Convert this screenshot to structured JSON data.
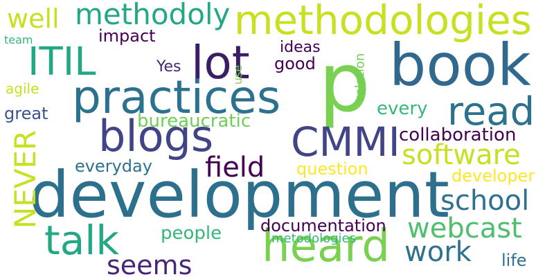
{
  "words": {
    "development": {
      "text": "development",
      "color": "#2d708e"
    },
    "methodologies": {
      "text": "methodologies",
      "color": "#c8e020"
    },
    "p": {
      "text": "p",
      "color": "#7ad151"
    },
    "book": {
      "text": "book",
      "color": "#31688e"
    },
    "practices": {
      "text": "practices",
      "color": "#2c728e"
    },
    "lot": {
      "text": "lot",
      "color": "#3b1f66"
    },
    "itil": {
      "text": "ITIL",
      "color": "#22a884"
    },
    "methodoly": {
      "text": "methodoly",
      "color": "#22a884"
    },
    "well": {
      "text": "well",
      "color": "#c8e020"
    },
    "read": {
      "text": "read",
      "color": "#2c728e"
    },
    "blogs": {
      "text": "blogs",
      "color": "#414487"
    },
    "cmmi": {
      "text": "CMMI",
      "color": "#414487"
    },
    "heard": {
      "text": "heard",
      "color": "#7ad151"
    },
    "talk": {
      "text": "talk",
      "color": "#22a884"
    },
    "never": {
      "text": "NEVER",
      "color": "#c8e020"
    },
    "software": {
      "text": "software",
      "color": "#c8e020"
    },
    "field": {
      "text": "field",
      "color": "#440154"
    },
    "school": {
      "text": "school",
      "color": "#2c728e"
    },
    "webcast": {
      "text": "webcast",
      "color": "#4fbf6f"
    },
    "work": {
      "text": "work",
      "color": "#2c728e"
    },
    "seems": {
      "text": "seems",
      "color": "#482677"
    },
    "impact": {
      "text": "impact",
      "color": "#440154"
    },
    "team": {
      "text": "team",
      "color": "#35b779"
    },
    "ideas": {
      "text": "ideas",
      "color": "#440154"
    },
    "yes": {
      "text": "Yes",
      "color": "#482677"
    },
    "good": {
      "text": "good",
      "color": "#440154"
    },
    "use": {
      "text": "use",
      "color": "#7ad151"
    },
    "relation": {
      "text": "relation",
      "color": "#6ece58"
    },
    "agile": {
      "text": "agile",
      "color": "#c8e020"
    },
    "every": {
      "text": "every",
      "color": "#35b779"
    },
    "great": {
      "text": "great",
      "color": "#3b528b"
    },
    "bureaucratic": {
      "text": "bureaucratic",
      "color": "#6ece58"
    },
    "collaboration": {
      "text": "collaboration",
      "color": "#440154"
    },
    "everyday": {
      "text": "everyday",
      "color": "#2c728e"
    },
    "question": {
      "text": "question",
      "color": "#fde725"
    },
    "developer": {
      "text": "developer",
      "color": "#fde725"
    },
    "people": {
      "text": "people",
      "color": "#35b779"
    },
    "documentation": {
      "text": "documentation",
      "color": "#440154"
    },
    "metodologies": {
      "text": "metodologies",
      "color": "#35b779"
    },
    "life": {
      "text": "life",
      "color": "#2c728e"
    }
  }
}
